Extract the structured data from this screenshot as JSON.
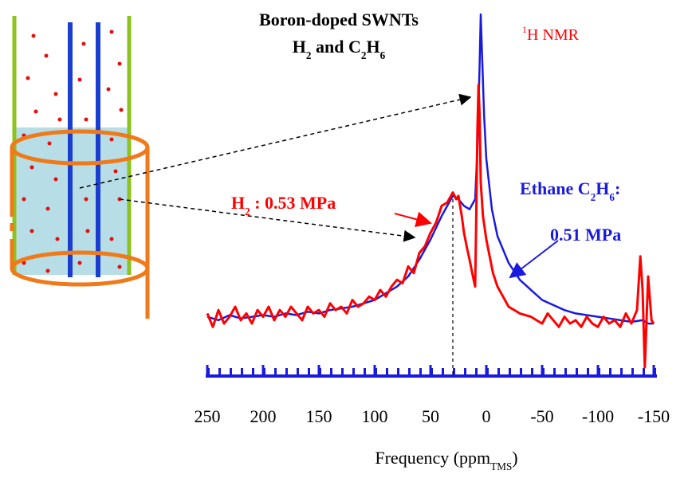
{
  "chart_data": {
    "type": "line",
    "title": [
      {
        "text": "Boron-doped SWNTs",
        "style": "normal"
      }
    ],
    "subtitle": [
      {
        "text": "H",
        "style": "normal"
      },
      {
        "text": "2",
        "style": "sub"
      },
      {
        "text": " and C",
        "style": "normal"
      },
      {
        "text": "2",
        "style": "sub"
      },
      {
        "text": "H",
        "style": "normal"
      },
      {
        "text": "6",
        "style": "sub"
      }
    ],
    "annotations": [
      {
        "parts": [
          {
            "text": "1",
            "style": "sup"
          },
          {
            "text": "H NMR",
            "style": "normal"
          }
        ],
        "color": "#ff0000",
        "bold": false
      },
      {
        "parts": [
          {
            "text": "H",
            "style": "normal"
          },
          {
            "text": "2",
            "style": "sub"
          },
          {
            "text": " : 0.53 MPa",
            "style": "normal"
          }
        ],
        "color": "#ff0000",
        "bold": true
      },
      {
        "parts": [
          {
            "text": "Ethane C",
            "style": "normal"
          },
          {
            "text": "2",
            "style": "sub"
          },
          {
            "text": "H",
            "style": "normal"
          },
          {
            "text": "6",
            "style": "sub"
          },
          {
            "text": ":",
            "style": "normal"
          }
        ],
        "color": "#1a1adf",
        "bold": true
      },
      {
        "parts": [
          {
            "text": "0.51 MPa",
            "style": "normal"
          }
        ],
        "color": "#1a1adf",
        "bold": true
      }
    ],
    "xlabel": [
      {
        "text": "Frequency (ppm",
        "style": "normal"
      },
      {
        "text": "TMS",
        "style": "sub"
      },
      {
        "text": ")",
        "style": "normal"
      }
    ],
    "xlim": [
      250,
      -150
    ],
    "xticks": [
      250,
      200,
      150,
      100,
      50,
      0,
      -50,
      -100,
      -150
    ],
    "ylim": [
      -10,
      100
    ],
    "axis_color": "#1a1adf",
    "series": [
      {
        "color": "#1a1adf",
        "x": [
          250,
          240,
          230,
          220,
          210,
          200,
          190,
          180,
          170,
          160,
          150,
          140,
          130,
          120,
          110,
          100,
          90,
          80,
          70,
          60,
          50,
          40,
          35,
          30,
          25,
          20,
          15,
          10,
          8,
          6,
          5,
          4,
          2,
          0,
          -5,
          -10,
          -20,
          -30,
          -40,
          -50,
          -60,
          -70,
          -80,
          -90,
          -100,
          -110,
          -120,
          -130,
          -140,
          -145,
          -150
        ],
        "values": [
          10,
          9,
          10.5,
          9.5,
          10,
          10.5,
          10,
          11,
          10.5,
          11.5,
          11,
          12,
          12.5,
          13,
          14,
          15,
          17,
          19,
          22,
          27,
          33,
          40,
          43,
          46,
          45,
          43,
          42,
          45,
          60,
          85,
          100,
          90,
          70,
          57,
          42,
          34,
          26,
          21,
          18,
          15,
          13.5,
          12,
          11,
          10.5,
          10,
          9.5,
          9,
          8.5,
          9,
          8,
          8
        ]
      },
      {
        "color": "#ff0000",
        "x": [
          250,
          245,
          240,
          235,
          230,
          225,
          220,
          215,
          210,
          205,
          200,
          195,
          190,
          185,
          180,
          175,
          170,
          165,
          160,
          155,
          150,
          145,
          140,
          135,
          130,
          125,
          120,
          115,
          110,
          105,
          100,
          95,
          90,
          85,
          80,
          75,
          70,
          65,
          60,
          55,
          50,
          45,
          40,
          35,
          30,
          27,
          25,
          22,
          20,
          17,
          15,
          12,
          10,
          9,
          8,
          7,
          6,
          5,
          3,
          0,
          -3,
          -6,
          -10,
          -15,
          -20,
          -30,
          -40,
          -50,
          -55,
          -60,
          -65,
          -70,
          -75,
          -80,
          -85,
          -90,
          -95,
          -100,
          -105,
          -110,
          -115,
          -120,
          -125,
          -130,
          -135,
          -138,
          -140,
          -142,
          -145,
          -148,
          -150
        ],
        "values": [
          11,
          7,
          12,
          8,
          10,
          13,
          9,
          11,
          8,
          12,
          10,
          13,
          9,
          12,
          10,
          13,
          11,
          9,
          13,
          11,
          12,
          10,
          14,
          12,
          13,
          11,
          15,
          13,
          14,
          16,
          15,
          18,
          16,
          19,
          21,
          20,
          25,
          23,
          29,
          31,
          35,
          38,
          43,
          44,
          47,
          45,
          46,
          40,
          35,
          30,
          27,
          22,
          19,
          40,
          65,
          79,
          70,
          50,
          40,
          33,
          28,
          23,
          19,
          16,
          13,
          11,
          10,
          8,
          11,
          9,
          7,
          10,
          8,
          9,
          7,
          10,
          8,
          7,
          10,
          8,
          9,
          7,
          11,
          8,
          12,
          28,
          18,
          -5,
          22,
          9,
          8
        ]
      }
    ]
  }
}
